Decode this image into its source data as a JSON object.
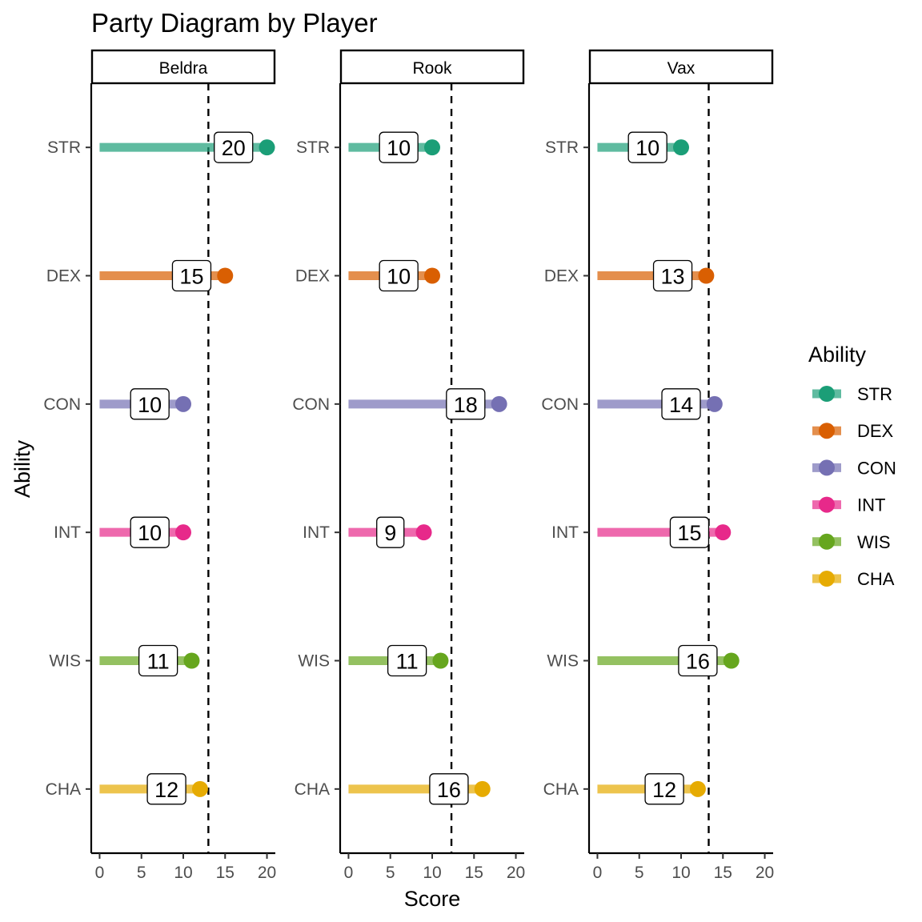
{
  "chart_data": {
    "type": "lollipop",
    "title": "Party Diagram by Player",
    "xlabel": "Score",
    "ylabel": "Ability",
    "xlim": [
      -1,
      21
    ],
    "xticks": [
      0,
      5,
      10,
      15,
      20
    ],
    "categories": [
      "STR",
      "DEX",
      "CON",
      "INT",
      "WIS",
      "CHA"
    ],
    "colors": {
      "STR": "#1B9E77",
      "DEX": "#D95F02",
      "CON": "#7570B3",
      "INT": "#E7298A",
      "WIS": "#66A61E",
      "CHA": "#E6AB02"
    },
    "legend": {
      "title": "Ability",
      "position": "right"
    },
    "grid": false,
    "panels": [
      {
        "name": "Beldra",
        "mean_line": 13.0,
        "values": [
          20,
          15,
          10,
          10,
          11,
          12
        ]
      },
      {
        "name": "Rook",
        "mean_line": 12.3,
        "values": [
          10,
          10,
          18,
          9,
          11,
          16
        ]
      },
      {
        "name": "Vax",
        "mean_line": 13.3,
        "values": [
          10,
          13,
          14,
          15,
          16,
          12
        ]
      }
    ]
  }
}
